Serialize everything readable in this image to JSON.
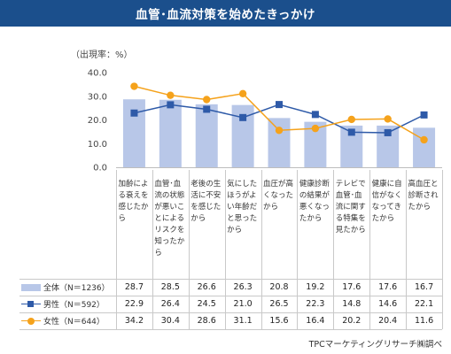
{
  "title": "血管･血流対策を始めたきっかけ",
  "source": "TPCマーケティングリサーチ㈱調べ",
  "chart_data": {
    "type": "bar",
    "unit_label": "（出現率：%）",
    "ylim": [
      0,
      40
    ],
    "yticks": [
      "0.0",
      "10.0",
      "20.0",
      "30.0",
      "40.0"
    ],
    "ytick_values": [
      0,
      10,
      20,
      30,
      40
    ],
    "grid": false,
    "colors": {
      "bar": "#b8c7e8",
      "male": "#2e5aa8",
      "female": "#f5a21b"
    },
    "categories": [
      "加齢による衰えを感じたから",
      "血管･血流の状態が悪いことによるリスクを知ったから",
      "老後の生活に不安を感じたから",
      "気にしたほうがよい年齢だと思ったから",
      "血圧が高くなったから",
      "健康診断の結果が悪くなったから",
      "テレビで血管･血流に関する特集を見たから",
      "健康に自信がなくなってきたから",
      "高血圧と診断されたから"
    ],
    "series": [
      {
        "name": "全体（N＝1236）",
        "type": "bar",
        "values": [
          28.7,
          28.5,
          26.6,
          26.3,
          20.8,
          19.2,
          17.6,
          17.6,
          16.7
        ],
        "labels": [
          "28.7",
          "28.5",
          "26.6",
          "26.3",
          "20.8",
          "19.2",
          "17.6",
          "17.6",
          "16.7"
        ]
      },
      {
        "name": "男性（N＝592）",
        "type": "line",
        "marker": "square",
        "values": [
          22.9,
          26.4,
          24.5,
          21.0,
          26.5,
          22.3,
          14.8,
          14.6,
          22.1
        ],
        "labels": [
          "22.9",
          "26.4",
          "24.5",
          "21.0",
          "26.5",
          "22.3",
          "14.8",
          "14.6",
          "22.1"
        ]
      },
      {
        "name": "女性（N＝644）",
        "type": "line",
        "marker": "circle",
        "values": [
          34.2,
          30.4,
          28.6,
          31.1,
          15.6,
          16.4,
          20.2,
          20.4,
          11.6
        ],
        "labels": [
          "34.2",
          "30.4",
          "28.6",
          "31.1",
          "15.6",
          "16.4",
          "20.2",
          "20.4",
          "11.6"
        ]
      }
    ]
  }
}
